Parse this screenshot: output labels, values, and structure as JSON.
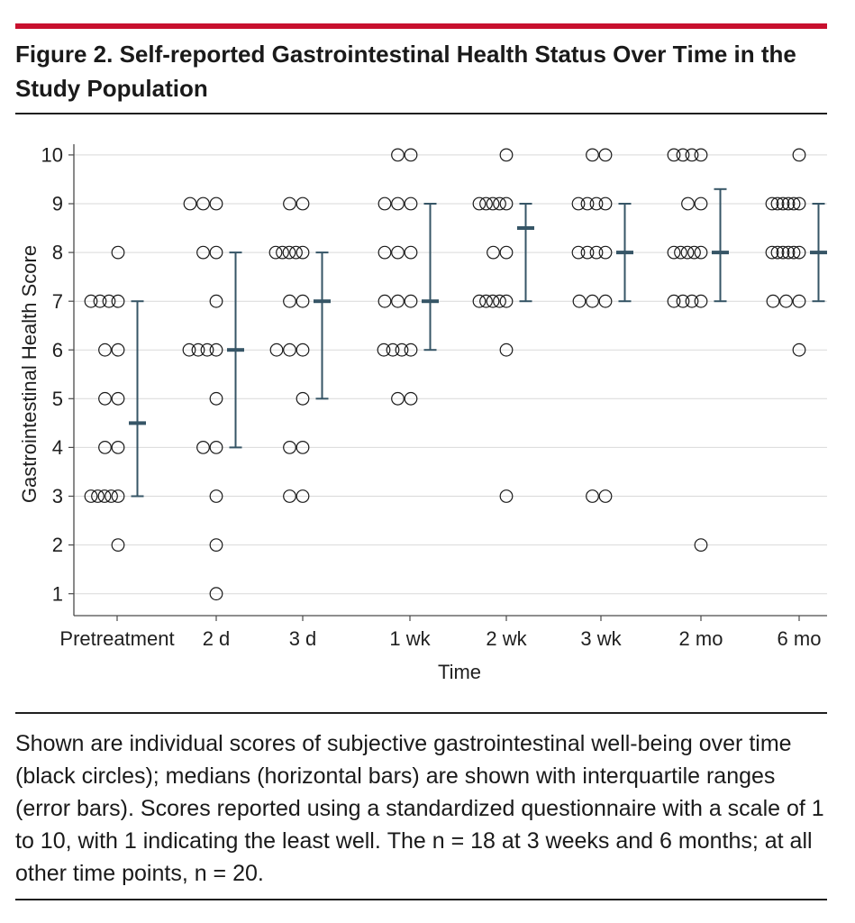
{
  "colors": {
    "accent_rule": "#c8102e",
    "axis": "#4a4a4a",
    "grid": "#d9d9d9",
    "marker": "#1a1a1a",
    "error_bar": "#365566"
  },
  "figure": {
    "caption": "Shown are individual scores of subjective gastrointestinal well-being over time (black circles); medians (horizontal bars) are shown with interquartile ranges (error bars). Scores reported using a standardized questionnaire with a scale of 1 to 10, with 1 indicating the least well. The n = 18 at 3 weeks and 6 months; at all other time points, n = 20."
  },
  "chart_data": {
    "type": "scatter",
    "title": "Figure 2. Self-reported Gastrointestinal Health Status Over Time in the Study Population",
    "xlabel": "Time",
    "ylabel": "Gastrointestinal Health Score",
    "ylim": [
      0.55,
      10.22
    ],
    "yticks": [
      1,
      2,
      3,
      4,
      5,
      6,
      7,
      8,
      9,
      10
    ],
    "grid": true,
    "groups": [
      {
        "label": "Pretreatment",
        "scores": [
          8,
          7,
          7,
          7,
          7,
          6,
          6,
          5,
          5,
          4,
          4,
          3,
          3,
          3,
          3,
          3,
          2
        ],
        "median": 4.5,
        "iqr": [
          3,
          7
        ]
      },
      {
        "label": "2 d",
        "scores": [
          9,
          9,
          9,
          8,
          8,
          7,
          6,
          6,
          6,
          6,
          5,
          4,
          4,
          3,
          2,
          1
        ],
        "median": 6,
        "iqr": [
          4,
          8
        ]
      },
      {
        "label": "3 d",
        "scores": [
          9,
          9,
          8,
          8,
          8,
          8,
          8,
          7,
          7,
          6,
          6,
          6,
          5,
          4,
          4,
          3,
          3
        ],
        "median": 7,
        "iqr": [
          5,
          8
        ]
      },
      {
        "label": "1 wk",
        "scores": [
          10,
          10,
          9,
          9,
          9,
          8,
          8,
          8,
          7,
          7,
          7,
          6,
          6,
          6,
          6,
          5,
          5
        ],
        "median": 7,
        "iqr": [
          6,
          9
        ]
      },
      {
        "label": "2 wk",
        "scores": [
          10,
          9,
          9,
          9,
          9,
          9,
          8,
          8,
          7,
          7,
          7,
          7,
          7,
          6,
          3
        ],
        "median": 8.5,
        "iqr": [
          7,
          9
        ]
      },
      {
        "label": "3 wk",
        "scores": [
          10,
          10,
          9,
          9,
          9,
          9,
          8,
          8,
          8,
          8,
          7,
          7,
          7,
          3,
          3
        ],
        "median": 8,
        "iqr": [
          7,
          9
        ]
      },
      {
        "label": "2 mo",
        "scores": [
          10,
          10,
          10,
          10,
          9,
          9,
          8,
          8,
          8,
          8,
          8,
          7,
          7,
          7,
          7,
          2
        ],
        "median": 8,
        "iqr": [
          7,
          9.3
        ]
      },
      {
        "label": "6 mo",
        "scores": [
          10,
          9,
          9,
          9,
          9,
          9,
          9,
          8,
          8,
          8,
          8,
          8,
          8,
          7,
          7,
          7,
          6
        ],
        "median": 8,
        "iqr": [
          7,
          9
        ]
      }
    ]
  }
}
